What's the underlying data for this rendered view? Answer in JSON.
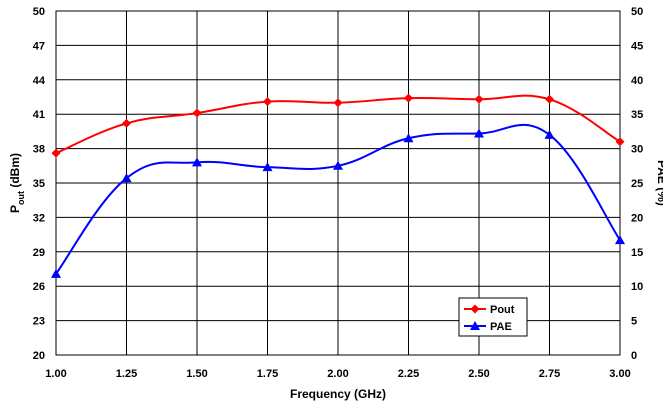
{
  "chart_data": {
    "type": "line",
    "x": [
      1.0,
      1.25,
      1.5,
      1.75,
      2.0,
      2.25,
      2.5,
      2.75,
      3.0
    ],
    "x_ticks": [
      "1.00",
      "1.25",
      "1.50",
      "1.75",
      "2.00",
      "2.25",
      "2.50",
      "2.75",
      "3.00"
    ],
    "xlabel": "Frequency (GHz)",
    "xlim": [
      1.0,
      3.0
    ],
    "y_left": {
      "label_main": "P",
      "label_sub": "out",
      "label_rest": " (dBm)",
      "ylim": [
        20,
        50
      ],
      "ticks": [
        "20",
        "23",
        "26",
        "29",
        "32",
        "35",
        "38",
        "41",
        "44",
        "47",
        "50"
      ]
    },
    "y_right": {
      "label": "PAE (%)",
      "ylim": [
        0,
        50
      ],
      "ticks": [
        "0",
        "5",
        "10",
        "15",
        "20",
        "25",
        "30",
        "35",
        "40",
        "45",
        "50"
      ]
    },
    "grid": true,
    "legend_position": "bottom-right",
    "series": [
      {
        "name": "Pout",
        "axis": "left",
        "color": "#ff0000",
        "marker": "diamond",
        "values": [
          37.6,
          40.2,
          41.1,
          42.1,
          42.0,
          42.4,
          42.3,
          42.3,
          38.6
        ]
      },
      {
        "name": "PAE",
        "axis": "right",
        "color": "#0000ff",
        "marker": "triangle",
        "values": [
          11.8,
          25.7,
          28.0,
          27.3,
          27.5,
          31.5,
          32.2,
          32.0,
          16.7
        ]
      }
    ]
  }
}
